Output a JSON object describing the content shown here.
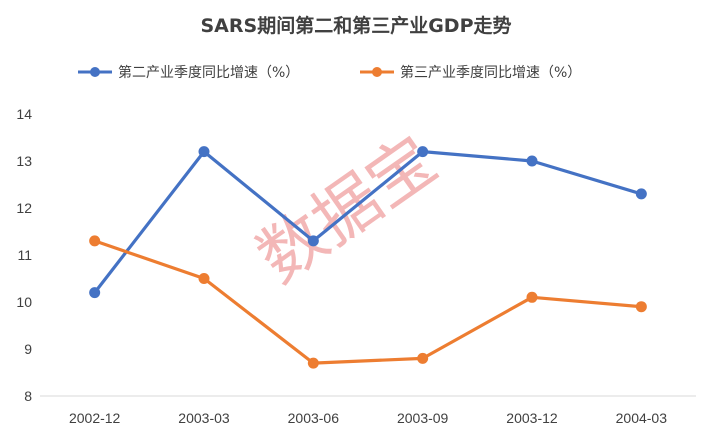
{
  "chart_data": {
    "type": "line",
    "title": "SARS期间第二和第三产业GDP走势",
    "categories": [
      "2002-12",
      "2003-03",
      "2003-06",
      "2003-09",
      "2003-12",
      "2004-03"
    ],
    "series": [
      {
        "name": "第二产业季度同比增速（%）",
        "color": "#4472c4",
        "values": [
          10.2,
          13.2,
          11.3,
          13.2,
          13.0,
          12.3
        ]
      },
      {
        "name": "第三产业季度同比增速（%）",
        "color": "#ed7d31",
        "values": [
          11.3,
          10.5,
          8.7,
          8.8,
          10.1,
          9.9
        ]
      }
    ],
    "ylim": [
      8,
      14
    ],
    "yticks": [
      8,
      9,
      10,
      11,
      12,
      13,
      14
    ],
    "grid": false,
    "legend": "top"
  },
  "watermark": "数据宝"
}
